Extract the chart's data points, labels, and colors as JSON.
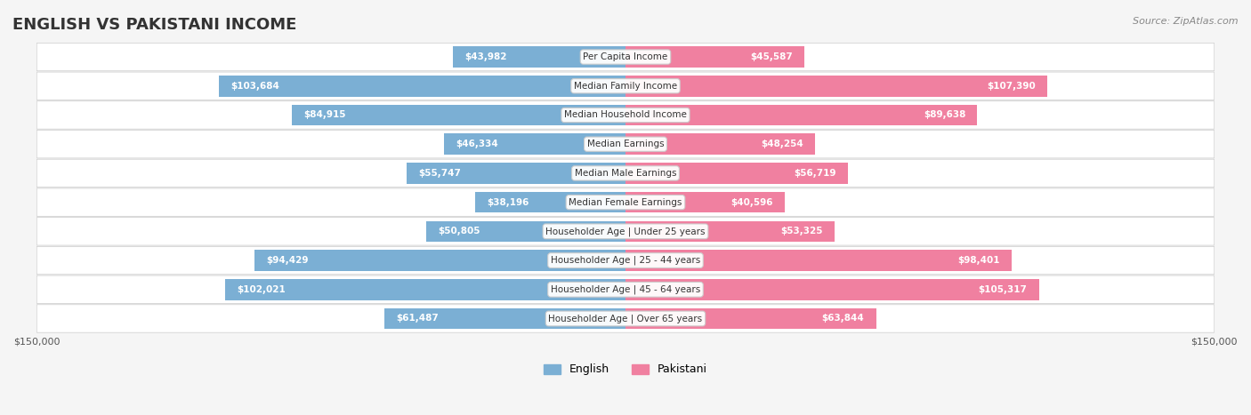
{
  "title": "ENGLISH VS PAKISTANI INCOME",
  "source": "Source: ZipAtlas.com",
  "categories": [
    "Per Capita Income",
    "Median Family Income",
    "Median Household Income",
    "Median Earnings",
    "Median Male Earnings",
    "Median Female Earnings",
    "Householder Age | Under 25 years",
    "Householder Age | 25 - 44 years",
    "Householder Age | 45 - 64 years",
    "Householder Age | Over 65 years"
  ],
  "english_values": [
    43982,
    103684,
    84915,
    46334,
    55747,
    38196,
    50805,
    94429,
    102021,
    61487
  ],
  "pakistani_values": [
    45587,
    107390,
    89638,
    48254,
    56719,
    40596,
    53325,
    98401,
    105317,
    63844
  ],
  "english_labels": [
    "$43,982",
    "$103,684",
    "$84,915",
    "$46,334",
    "$55,747",
    "$38,196",
    "$50,805",
    "$94,429",
    "$102,021",
    "$61,487"
  ],
  "pakistani_labels": [
    "$45,587",
    "$107,390",
    "$89,638",
    "$48,254",
    "$56,719",
    "$40,596",
    "$53,325",
    "$98,401",
    "$105,317",
    "$63,844"
  ],
  "english_color": "#7BAFD4",
  "pakistani_color": "#F080A0",
  "english_color_dark": "#5B8FBF",
  "pakistani_color_dark": "#E05575",
  "max_value": 150000,
  "background_color": "#f5f5f5",
  "bar_bg_color": "#e8e8e8",
  "row_bg_color": "#f0f0f0"
}
